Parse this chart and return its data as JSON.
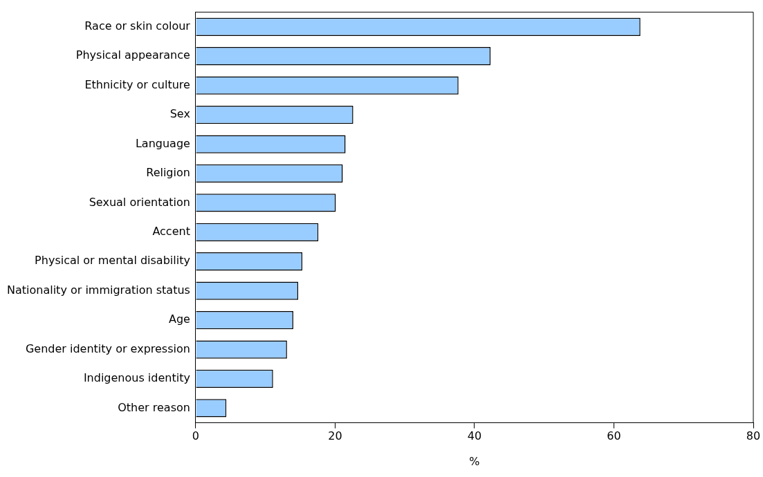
{
  "chart_data": {
    "type": "bar",
    "orientation": "horizontal",
    "categories": [
      "Race or skin colour",
      "Physical appearance",
      "Ethnicity or culture",
      "Sex",
      "Language",
      "Religion",
      "Sexual orientation",
      "Accent",
      "Physical or mental disability",
      "Nationality or immigration status",
      "Age",
      "Gender identity or expression",
      "Indigenous identity",
      "Other reason"
    ],
    "values": [
      63.8,
      42.3,
      37.7,
      22.6,
      21.5,
      21.1,
      20.1,
      17.6,
      15.3,
      14.7,
      14.0,
      13.1,
      11.1,
      4.4
    ],
    "color": "#99ccff",
    "xlabel": "%",
    "xlim": [
      0,
      80
    ],
    "xticks": [
      0,
      20,
      40,
      60,
      80
    ],
    "grid": false,
    "legend": false
  }
}
